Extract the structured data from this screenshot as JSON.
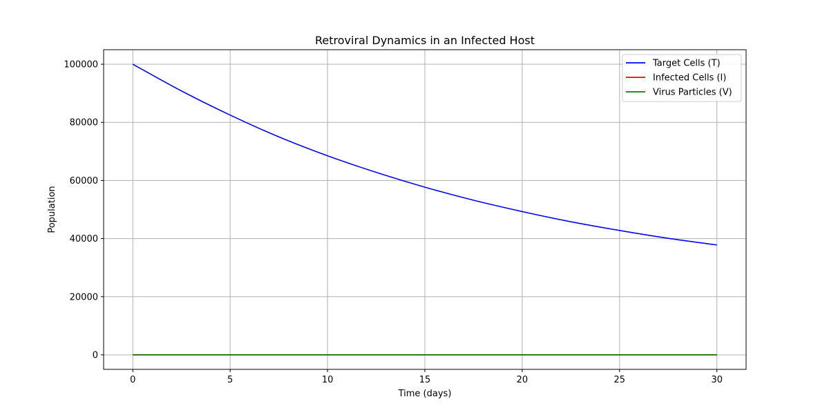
{
  "chart_data": {
    "type": "line",
    "title": "Retroviral Dynamics in an Infected Host",
    "xlabel": "Time (days)",
    "ylabel": "Population",
    "xlim": [
      -1.5,
      31.5
    ],
    "ylim": [
      -5000,
      105000
    ],
    "xticks": [
      0,
      5,
      10,
      15,
      20,
      25,
      30
    ],
    "yticks": [
      0,
      20000,
      40000,
      60000,
      80000,
      100000
    ],
    "grid": true,
    "legend_position": "top-right",
    "x": [
      0,
      2.5,
      5,
      7.5,
      10,
      12.5,
      15,
      17.5,
      20,
      22.5,
      25,
      27.5,
      30
    ],
    "series": [
      {
        "name": "Target Cells (T)",
        "color": "#0000ff",
        "values": [
          100000,
          90800,
          82500,
          75000,
          68500,
          62800,
          57700,
          53200,
          49300,
          45800,
          42800,
          40100,
          37800
        ]
      },
      {
        "name": "Infected Cells (I)",
        "color": "#ff0000",
        "values": [
          0,
          0,
          0,
          0,
          0,
          0,
          0,
          0,
          0,
          0,
          0,
          0,
          0
        ]
      },
      {
        "name": "Virus Particles (V)",
        "color": "#008000",
        "values": [
          0,
          0,
          0,
          0,
          0,
          0,
          0,
          0,
          0,
          0,
          0,
          0,
          0
        ]
      }
    ]
  }
}
